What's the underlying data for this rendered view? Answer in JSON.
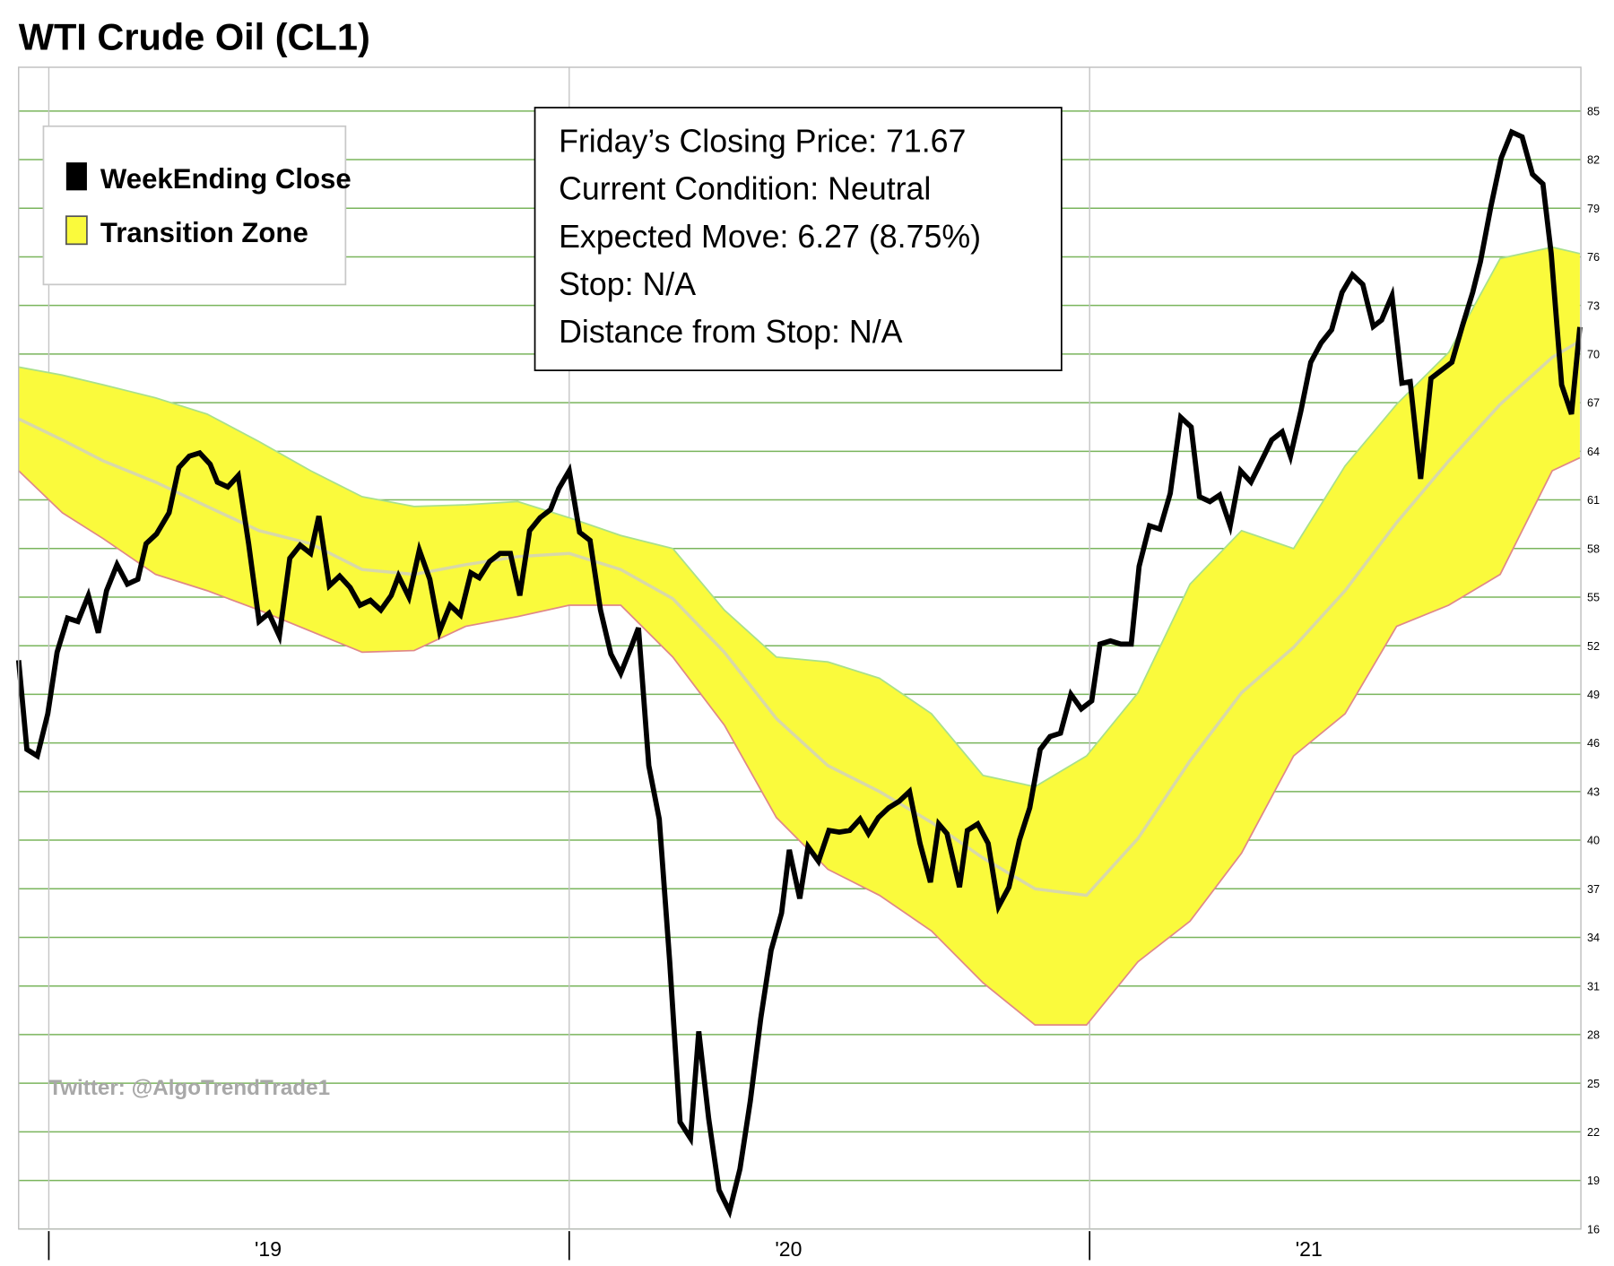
{
  "chart_data": {
    "type": "line",
    "title": "WTI Crude Oil (CL1)",
    "watermark": "Twitter: @AlgoTrendTrade1",
    "annotations": [
      "Friday’s Closing Price: 71.67",
      "Current Condition: Neutral",
      "Expected Move: 6.27 (8.75%)",
      "Stop: N/A",
      "Distance from Stop: N/A"
    ],
    "legend": "upper left",
    "grid": true,
    "grid_color": "#7ab55c",
    "xlim": [
      2018.942,
      2021.944
    ],
    "xticks": [
      {
        "value": 2019,
        "label": "'19"
      },
      {
        "value": 2020,
        "label": "'20"
      },
      {
        "value": 2021,
        "label": "'21"
      }
    ],
    "ylim": [
      16,
      87.7
    ],
    "yticks": [
      16,
      19,
      22,
      25,
      28,
      31,
      34,
      37,
      40,
      43,
      46,
      49,
      52,
      55,
      58,
      61,
      64,
      67,
      70,
      73,
      76,
      79,
      82,
      85
    ],
    "series": [
      {
        "name": "WeekEnding Close",
        "color": "#000000",
        "x": [
          2018.942,
          2018.958,
          2018.978,
          2018.998,
          2019.016,
          2019.036,
          2019.056,
          2019.076,
          2019.095,
          2019.111,
          2019.131,
          2019.151,
          2019.171,
          2019.187,
          2019.207,
          2019.231,
          2019.25,
          2019.27,
          2019.29,
          2019.31,
          2019.324,
          2019.344,
          2019.364,
          2019.384,
          2019.404,
          2019.423,
          2019.443,
          2019.463,
          2019.483,
          2019.503,
          2019.519,
          2019.539,
          2019.559,
          2019.579,
          2019.598,
          2019.618,
          2019.638,
          2019.658,
          2019.672,
          2019.692,
          2019.712,
          2019.732,
          2019.751,
          2019.771,
          2019.791,
          2019.811,
          2019.827,
          2019.847,
          2019.867,
          2019.887,
          2019.905,
          2019.924,
          2019.944,
          2019.964,
          2019.98,
          2020.0,
          2020.02,
          2020.04,
          2020.06,
          2020.08,
          2020.099,
          2020.119,
          2020.133,
          2020.153,
          2020.173,
          2020.193,
          2020.213,
          2020.233,
          2020.249,
          2020.268,
          2020.288,
          2020.308,
          2020.328,
          2020.348,
          2020.368,
          2020.388,
          2020.408,
          2020.423,
          2020.443,
          2020.459,
          2020.479,
          2020.499,
          2020.519,
          2020.539,
          2020.559,
          2020.575,
          2020.594,
          2020.614,
          2020.634,
          2020.654,
          2020.674,
          2020.694,
          2020.71,
          2020.726,
          2020.75,
          2020.765,
          2020.785,
          2020.805,
          2020.825,
          2020.845,
          2020.865,
          2020.885,
          2020.905,
          2020.924,
          2020.944,
          2020.964,
          2020.984,
          2021.004,
          2021.02,
          2021.04,
          2021.06,
          2021.08,
          2021.095,
          2021.115,
          2021.135,
          2021.155,
          2021.175,
          2021.195,
          2021.211,
          2021.231,
          2021.25,
          2021.27,
          2021.29,
          2021.31,
          2021.33,
          2021.35,
          2021.37,
          2021.386,
          2021.406,
          2021.425,
          2021.445,
          2021.465,
          2021.485,
          2021.505,
          2021.525,
          2021.545,
          2021.561,
          2021.581,
          2021.6,
          2021.616,
          2021.636,
          2021.656,
          2021.676,
          2021.696,
          2021.716,
          2021.736,
          2021.751,
          2021.771,
          2021.791,
          2021.811,
          2021.831,
          2021.851,
          2021.871,
          2021.887,
          2021.907,
          2021.926,
          2021.942
        ],
        "values": [
          51.1,
          45.6,
          45.2,
          47.8,
          51.6,
          53.7,
          53.5,
          55.1,
          52.8,
          55.4,
          57.0,
          55.8,
          56.1,
          58.3,
          58.9,
          60.2,
          63.0,
          63.7,
          63.9,
          63.2,
          62.1,
          61.8,
          62.5,
          58.3,
          53.5,
          54.0,
          52.6,
          57.4,
          58.2,
          57.7,
          60.0,
          55.7,
          56.3,
          55.6,
          54.5,
          54.8,
          54.2,
          55.1,
          56.3,
          55.0,
          57.9,
          56.1,
          52.9,
          54.5,
          53.9,
          56.5,
          56.2,
          57.2,
          57.7,
          57.7,
          55.1,
          59.1,
          59.9,
          60.4,
          61.7,
          62.8,
          59.0,
          58.5,
          54.2,
          51.5,
          50.3,
          51.9,
          53.1,
          44.6,
          41.3,
          32.5,
          22.6,
          21.6,
          28.2,
          22.8,
          18.4,
          17.1,
          19.7,
          23.9,
          29.0,
          33.2,
          35.5,
          39.4,
          36.4,
          39.6,
          38.7,
          40.6,
          40.5,
          40.6,
          41.3,
          40.4,
          41.4,
          42.0,
          42.4,
          43.0,
          39.8,
          37.4,
          41.0,
          40.4,
          37.1,
          40.6,
          41.0,
          39.8,
          35.9,
          37.1,
          40.0,
          42.0,
          45.6,
          46.4,
          46.6,
          49.0,
          48.1,
          48.6,
          52.1,
          52.3,
          52.1,
          52.1,
          56.9,
          59.4,
          59.2,
          61.4,
          66.1,
          65.5,
          61.2,
          60.9,
          61.3,
          59.4,
          62.8,
          62.1,
          63.4,
          64.7,
          65.2,
          63.7,
          66.5,
          69.5,
          70.7,
          71.5,
          73.8,
          74.9,
          74.3,
          71.7,
          72.1,
          73.6,
          68.2,
          68.3,
          62.3,
          68.5,
          69.0,
          69.5,
          71.7,
          73.8,
          75.7,
          79.1,
          82.1,
          83.7,
          83.4,
          81.1,
          80.5,
          76.2,
          68.1,
          66.3,
          71.67
        ]
      }
    ],
    "band": {
      "name": "Transition Zone",
      "color": "#fafa3c",
      "upper_color": "#a8e08c",
      "lower_color": "#e08888",
      "middle_color": "#d8d8a8",
      "x": [
        2018.942,
        2019.026,
        2019.105,
        2019.205,
        2019.304,
        2019.404,
        2019.503,
        2019.602,
        2019.702,
        2019.801,
        2019.901,
        2020.0,
        2020.099,
        2020.199,
        2020.298,
        2020.398,
        2020.497,
        2020.596,
        2020.696,
        2020.795,
        2020.895,
        2020.994,
        2021.093,
        2021.193,
        2021.292,
        2021.392,
        2021.491,
        2021.59,
        2021.69,
        2021.789,
        2021.889,
        2021.942
      ],
      "upper": [
        69.2,
        68.7,
        68.1,
        67.3,
        66.3,
        64.6,
        62.8,
        61.2,
        60.6,
        60.7,
        60.9,
        59.9,
        58.8,
        58.0,
        54.2,
        51.3,
        51.0,
        50.0,
        47.8,
        44.0,
        43.3,
        45.2,
        49.1,
        55.8,
        59.1,
        58.0,
        63.1,
        66.9,
        70.1,
        75.9,
        76.6,
        76.2
      ],
      "lower": [
        62.8,
        60.2,
        58.6,
        56.4,
        55.4,
        54.2,
        52.9,
        51.6,
        51.7,
        53.2,
        53.8,
        54.5,
        54.5,
        51.3,
        47.1,
        41.4,
        38.2,
        36.6,
        34.4,
        31.2,
        28.6,
        28.6,
        32.5,
        35.0,
        39.2,
        45.2,
        47.8,
        53.2,
        54.5,
        56.4,
        62.8,
        63.6
      ],
      "middle": [
        66.0,
        64.7,
        63.4,
        62.1,
        60.6,
        59.1,
        58.3,
        56.7,
        56.4,
        57.0,
        57.5,
        57.7,
        56.7,
        54.9,
        51.6,
        47.5,
        44.6,
        43.0,
        41.1,
        38.9,
        37.0,
        36.6,
        40.1,
        44.9,
        49.1,
        51.9,
        55.4,
        59.6,
        63.4,
        66.9,
        69.8,
        70.8
      ]
    }
  }
}
